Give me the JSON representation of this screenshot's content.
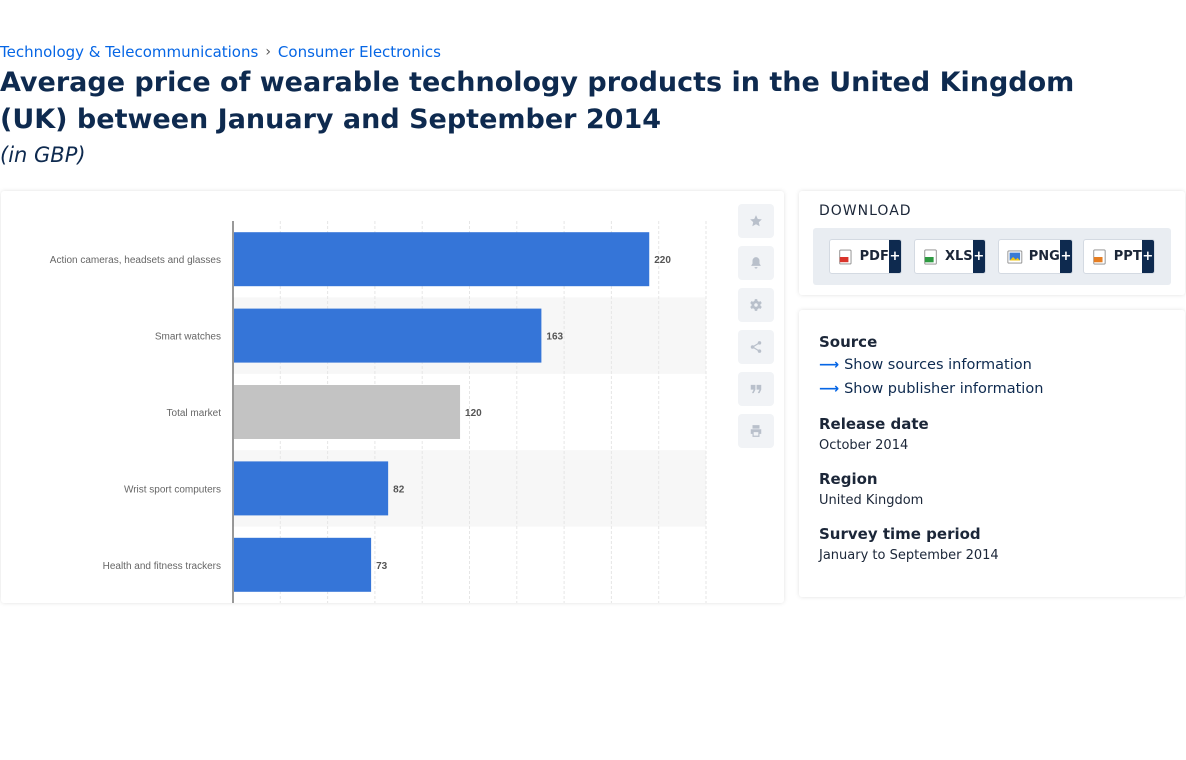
{
  "breadcrumb": {
    "items": [
      "Technology & Telecommunications",
      "Consumer Electronics"
    ],
    "separator": "›"
  },
  "title": "Average price of wearable technology products in the United Kingdom (UK) between January and September 2014",
  "subtitle": "(in GBP)",
  "chart_data": {
    "type": "bar",
    "orientation": "horizontal",
    "categories": [
      "Action cameras, headsets and glasses",
      "Smart watches",
      "Total market",
      "Wrist sport computers",
      "Health and fitness trackers"
    ],
    "values": [
      220,
      163,
      120,
      82,
      73
    ],
    "highlight_category": "Total market",
    "colors": {
      "bar": "#3575d8",
      "highlight": "#c3c3c3",
      "gridline": "#e6e6e6",
      "band": "#f7f7f7"
    },
    "xlim": [
      0,
      250
    ],
    "grid": true,
    "data_labels": true,
    "legend": "none"
  },
  "toolbar": {
    "buttons": [
      {
        "name": "favorite-button",
        "icon": "star-icon"
      },
      {
        "name": "notification-button",
        "icon": "bell-icon"
      },
      {
        "name": "settings-button",
        "icon": "gear-icon"
      },
      {
        "name": "share-button",
        "icon": "share-icon"
      },
      {
        "name": "cite-button",
        "icon": "quote-icon"
      },
      {
        "name": "print-button",
        "icon": "print-icon"
      }
    ]
  },
  "download": {
    "heading": "DOWNLOAD",
    "buttons": [
      {
        "label": "PDF",
        "icon": "pdf-file-icon",
        "color": "#d9342b"
      },
      {
        "label": "XLS",
        "icon": "xls-file-icon",
        "color": "#2e9a42"
      },
      {
        "label": "PNG",
        "icon": "png-file-icon",
        "color": "#3a7bd5"
      },
      {
        "label": "PPT",
        "icon": "ppt-file-icon",
        "color": "#e67e22"
      }
    ],
    "plus": "+"
  },
  "info": {
    "source_label": "Source",
    "show_sources": "Show sources information",
    "show_publisher": "Show publisher information",
    "release_label": "Release date",
    "release_value": "October 2014",
    "region_label": "Region",
    "region_value": "United Kingdom",
    "survey_label": "Survey time period",
    "survey_value": "January to September 2014"
  }
}
